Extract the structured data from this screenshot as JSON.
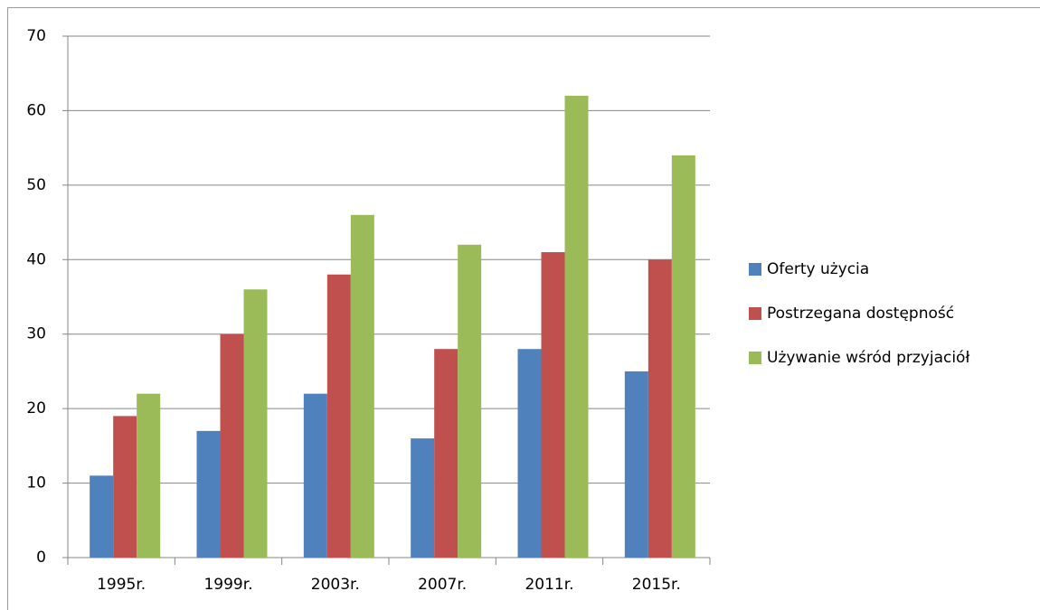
{
  "chart_data": {
    "type": "bar",
    "categories": [
      "1995r.",
      "1999r.",
      "2003r.",
      "2007r.",
      "2011r.",
      "2015r."
    ],
    "series": [
      {
        "name": "Oferty użycia",
        "color": "#4f81bd",
        "values": [
          11,
          17,
          22,
          16,
          28,
          25
        ]
      },
      {
        "name": "Postrzegana dostępność",
        "color": "#c0504d",
        "values": [
          19,
          30,
          38,
          28,
          41,
          40
        ]
      },
      {
        "name": "Używanie wśród przyjaciół",
        "color": "#9bbb59",
        "values": [
          22,
          36,
          46,
          42,
          62,
          54
        ]
      }
    ],
    "ylim": [
      0,
      70
    ],
    "yticks": [
      0,
      10,
      20,
      30,
      40,
      50,
      60,
      70
    ],
    "grid": true,
    "legend": "right"
  }
}
